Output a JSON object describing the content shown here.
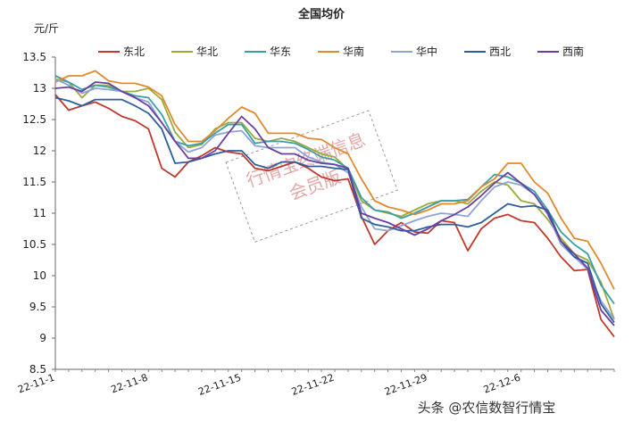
{
  "chart_data": {
    "type": "line",
    "title": "全国均价",
    "ylabel": "元/斤",
    "xlabel": "",
    "ylim": [
      8.5,
      13.5
    ],
    "yticks": [
      "13.5",
      "13",
      "12.5",
      "12",
      "11.5",
      "11",
      "10.5",
      "10",
      "9.5",
      "9",
      "8.5"
    ],
    "xticks": [
      "22-11-1",
      "22-11-8",
      "22-11-15",
      "22-11-22",
      "22-11-29",
      "22-12-6"
    ],
    "x": [
      "22-11-1",
      "22-11-2",
      "22-11-3",
      "22-11-4",
      "22-11-5",
      "22-11-6",
      "22-11-7",
      "22-11-8",
      "22-11-9",
      "22-11-10",
      "22-11-11",
      "22-11-12",
      "22-11-13",
      "22-11-14",
      "22-11-15",
      "22-11-16",
      "22-11-17",
      "22-11-18",
      "22-11-19",
      "22-11-20",
      "22-11-21",
      "22-11-22",
      "22-11-23",
      "22-11-24",
      "22-11-25",
      "22-11-26",
      "22-11-27",
      "22-11-28",
      "22-11-29",
      "22-11-30",
      "22-12-1",
      "22-12-2",
      "22-12-3",
      "22-12-4",
      "22-12-5",
      "22-12-6",
      "22-12-7",
      "22-12-8",
      "22-12-9",
      "22-12-10",
      "22-12-11",
      "22-12-12",
      "22-12-13"
    ],
    "legend_placement": "top",
    "grid": false,
    "series": [
      {
        "name": "东北",
        "color": "#c0392b",
        "values": [
          12.9,
          12.65,
          12.72,
          12.78,
          12.68,
          12.55,
          12.48,
          12.35,
          11.72,
          11.58,
          11.82,
          11.92,
          12.05,
          11.98,
          11.95,
          11.72,
          11.68,
          11.75,
          11.82,
          11.72,
          11.58,
          11.52,
          11.55,
          10.95,
          10.5,
          10.72,
          10.85,
          10.7,
          10.68,
          10.88,
          10.85,
          10.4,
          10.75,
          10.92,
          10.98,
          10.88,
          10.85,
          10.6,
          10.3,
          10.08,
          10.1,
          9.3,
          9.02
        ]
      },
      {
        "name": "华北",
        "color": "#9aab3c",
        "values": [
          13.15,
          13.1,
          12.85,
          13.05,
          13.05,
          12.95,
          12.95,
          13.0,
          12.82,
          12.3,
          12.05,
          12.1,
          12.35,
          12.45,
          12.45,
          12.2,
          12.15,
          12.2,
          12.15,
          12.05,
          11.95,
          11.9,
          11.7,
          11.2,
          11.05,
          11.0,
          10.95,
          11.05,
          11.15,
          11.2,
          11.2,
          11.15,
          11.35,
          11.5,
          11.45,
          11.2,
          11.15,
          10.9,
          10.6,
          10.35,
          10.25,
          9.9,
          9.3
        ]
      },
      {
        "name": "华东",
        "color": "#3a9ea5",
        "values": [
          13.2,
          13.1,
          12.98,
          13.05,
          13.02,
          12.95,
          12.88,
          12.85,
          12.58,
          12.15,
          12.08,
          12.12,
          12.28,
          12.42,
          12.42,
          12.12,
          12.15,
          12.15,
          12.12,
          12.02,
          11.9,
          11.85,
          11.72,
          11.25,
          11.05,
          11.02,
          10.92,
          11.0,
          11.1,
          11.2,
          11.2,
          11.22,
          11.42,
          11.62,
          11.58,
          11.48,
          11.35,
          11.05,
          10.7,
          10.5,
          10.35,
          9.85,
          9.55
        ]
      },
      {
        "name": "华南",
        "color": "#e08a2e",
        "values": [
          13.1,
          13.2,
          13.2,
          13.28,
          13.12,
          13.08,
          13.08,
          13.02,
          12.88,
          12.42,
          12.15,
          12.15,
          12.32,
          12.52,
          12.7,
          12.6,
          12.28,
          12.28,
          12.28,
          12.2,
          12.18,
          12.05,
          11.95,
          11.55,
          11.2,
          11.1,
          11.05,
          10.98,
          11.05,
          11.15,
          11.15,
          11.2,
          11.42,
          11.55,
          11.8,
          11.8,
          11.5,
          11.32,
          10.92,
          10.6,
          10.55,
          10.2,
          9.78
        ]
      },
      {
        "name": "华中",
        "color": "#8ea4d8",
        "values": [
          13.15,
          13.05,
          12.92,
          13.0,
          12.98,
          12.95,
          12.85,
          12.78,
          12.45,
          12.15,
          11.98,
          12.05,
          12.25,
          12.3,
          12.32,
          12.08,
          12.05,
          12.05,
          12.05,
          11.9,
          11.82,
          11.78,
          11.65,
          11.1,
          10.75,
          10.72,
          10.8,
          10.88,
          10.95,
          11.0,
          10.98,
          10.95,
          11.2,
          11.42,
          11.5,
          11.45,
          11.3,
          10.98,
          10.5,
          10.3,
          10.1,
          9.6,
          9.3
        ]
      },
      {
        "name": "西北",
        "color": "#2d5f9e",
        "values": [
          12.85,
          12.8,
          12.72,
          12.82,
          12.82,
          12.82,
          12.72,
          12.6,
          12.35,
          11.8,
          11.82,
          11.88,
          11.95,
          12.0,
          12.0,
          11.78,
          11.72,
          11.82,
          11.82,
          11.75,
          11.75,
          11.72,
          11.7,
          10.92,
          10.82,
          10.78,
          10.72,
          10.72,
          10.78,
          10.82,
          10.82,
          10.78,
          10.85,
          11.0,
          11.15,
          11.1,
          11.12,
          11.05,
          10.55,
          10.3,
          10.2,
          9.55,
          9.25
        ]
      },
      {
        "name": "西南",
        "color": "#6a3fa0",
        "values": [
          13.0,
          13.02,
          12.95,
          13.1,
          13.08,
          12.95,
          12.85,
          12.72,
          12.45,
          12.15,
          11.88,
          11.88,
          12.0,
          12.28,
          12.55,
          12.35,
          12.05,
          11.95,
          11.95,
          11.85,
          11.8,
          11.78,
          11.72,
          11.0,
          10.92,
          10.85,
          10.75,
          10.65,
          10.75,
          10.88,
          10.98,
          11.1,
          11.28,
          11.48,
          11.65,
          11.48,
          11.3,
          11.0,
          10.55,
          10.35,
          10.12,
          9.45,
          9.2
        ]
      }
    ]
  },
  "watermark": {
    "line1": "行情宝终端信息",
    "line2": "会员版"
  },
  "credit": "头条 @农信数智行情宝"
}
